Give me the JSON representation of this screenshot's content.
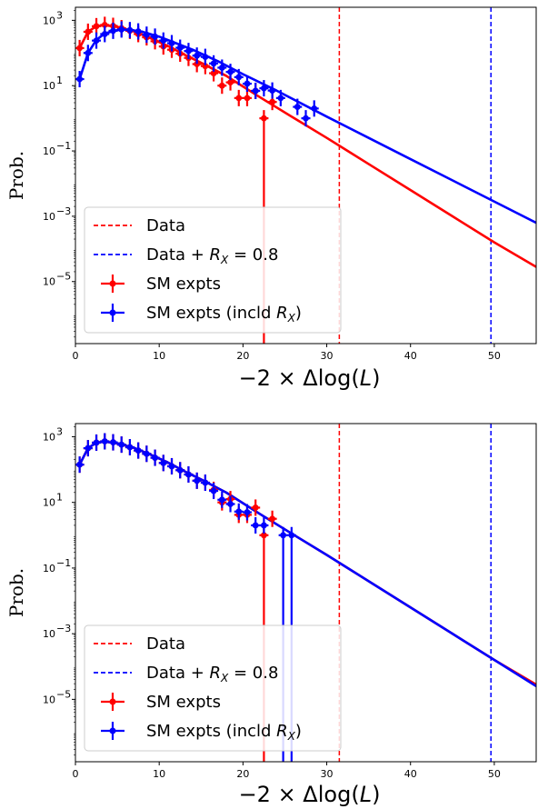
{
  "chart_data": [
    {
      "type": "line",
      "title": "",
      "xlabel": "−2 × Δlog(L)",
      "ylabel": "Prob.",
      "xlim": [
        0,
        55
      ],
      "ylim_log10": [
        -6.9,
        3.4
      ],
      "y_scale": "log",
      "xticks": [
        0,
        10,
        20,
        30,
        40,
        50
      ],
      "yticks_log10": [
        3,
        1,
        -1,
        -3,
        -5
      ],
      "legend_position": "lower-left",
      "vlines": [
        {
          "name": "Data",
          "x": 31.5,
          "color": "#ff0000"
        },
        {
          "name": "Data + R_X = 0.8",
          "x": 49.6,
          "color": "#0000ff"
        }
      ],
      "curves": [
        {
          "color": "#ff0000",
          "x": [
            0.5,
            1.5,
            2.5,
            3.5,
            5,
            7,
            9,
            11,
            13,
            15,
            18,
            22,
            26,
            30,
            35,
            40,
            45,
            50,
            55
          ],
          "y_log10": [
            2.15,
            2.65,
            2.82,
            2.85,
            2.8,
            2.66,
            2.45,
            2.22,
            1.95,
            1.7,
            1.3,
            0.65,
            0.02,
            -0.6,
            -1.4,
            -2.2,
            -3.0,
            -3.8,
            -4.55
          ]
        },
        {
          "color": "#0000ff",
          "x": [
            0.5,
            1.5,
            2.5,
            3.5,
            5,
            6,
            8,
            10,
            12,
            14,
            17,
            20,
            24,
            30,
            35,
            40,
            45,
            50,
            55
          ],
          "y_log10": [
            1.2,
            2.0,
            2.4,
            2.6,
            2.7,
            2.72,
            2.65,
            2.5,
            2.3,
            2.1,
            1.75,
            1.35,
            0.85,
            0.05,
            -0.6,
            -1.25,
            -1.9,
            -2.55,
            -3.2
          ]
        }
      ],
      "series": [
        {
          "name": "SM expts",
          "color": "#ff0000",
          "x": [
            0.5,
            1.5,
            2.5,
            3.5,
            4.5,
            5.5,
            6.5,
            7.5,
            8.5,
            9.5,
            10.5,
            11.5,
            12.5,
            13.5,
            14.5,
            15.5,
            16.5,
            17.5,
            18.5,
            19.5,
            20.5,
            21.5,
            22.5,
            23.5
          ],
          "y_log10": [
            2.15,
            2.65,
            2.82,
            2.86,
            2.83,
            2.76,
            2.68,
            2.58,
            2.48,
            2.36,
            2.2,
            2.1,
            1.98,
            1.85,
            1.66,
            1.6,
            1.38,
            1.0,
            1.1,
            0.62,
            0.62,
            0.84,
            0.0,
            0.5
          ],
          "bottom_to_axis": [
            22.5
          ]
        },
        {
          "name": "SM expts (incld R_X)",
          "color": "#0000ff",
          "x": [
            0.5,
            1.5,
            2.5,
            3.5,
            4.5,
            5.5,
            6.5,
            7.5,
            8.5,
            9.5,
            10.5,
            11.5,
            12.5,
            13.5,
            14.5,
            15.5,
            16.5,
            17.5,
            18.5,
            19.5,
            20.5,
            21.5,
            22.5,
            23.5,
            24.5,
            26.5,
            27.5,
            28.5
          ],
          "y_log10": [
            1.2,
            2.0,
            2.38,
            2.58,
            2.68,
            2.72,
            2.7,
            2.66,
            2.56,
            2.5,
            2.38,
            2.3,
            2.16,
            2.06,
            1.92,
            1.88,
            1.68,
            1.55,
            1.42,
            1.26,
            1.06,
            0.84,
            0.92,
            0.85,
            0.62,
            0.35,
            0.0,
            0.3
          ],
          "bottom_to_axis": [
            28.0
          ]
        }
      ]
    },
    {
      "type": "line",
      "title": "",
      "xlabel": "−2 × Δlog(L)",
      "ylabel": "Prob.",
      "xlim": [
        0,
        55
      ],
      "ylim_log10": [
        -6.9,
        3.4
      ],
      "y_scale": "log",
      "xticks": [
        0,
        10,
        20,
        30,
        40,
        50
      ],
      "yticks_log10": [
        3,
        1,
        -1,
        -3,
        -5
      ],
      "legend_position": "lower-left",
      "vlines": [
        {
          "name": "Data",
          "x": 31.5,
          "color": "#ff0000"
        },
        {
          "name": "Data + R_X = 0.8",
          "x": 49.6,
          "color": "#0000ff"
        }
      ],
      "curves": [
        {
          "color": "#ff0000",
          "x": [
            0.5,
            1.5,
            2.5,
            3.5,
            5,
            7,
            9,
            11,
            13,
            15,
            18,
            22,
            26,
            30,
            35,
            40,
            45,
            50,
            55
          ],
          "y_log10": [
            2.15,
            2.65,
            2.82,
            2.85,
            2.8,
            2.66,
            2.45,
            2.22,
            1.95,
            1.7,
            1.3,
            0.65,
            0.02,
            -0.6,
            -1.4,
            -2.2,
            -3.0,
            -3.8,
            -4.55
          ]
        },
        {
          "color": "#0000ff",
          "x": [
            0.5,
            1.5,
            2.5,
            3.5,
            5,
            7,
            9,
            11,
            13,
            15,
            18,
            22,
            26,
            30,
            35,
            40,
            45,
            50,
            55
          ],
          "y_log10": [
            2.15,
            2.65,
            2.82,
            2.85,
            2.8,
            2.66,
            2.45,
            2.22,
            1.95,
            1.7,
            1.3,
            0.65,
            0.02,
            -0.6,
            -1.4,
            -2.2,
            -3.0,
            -3.8,
            -4.6
          ]
        }
      ],
      "series": [
        {
          "name": "SM expts",
          "color": "#ff0000",
          "x": [
            0.5,
            1.5,
            2.5,
            3.5,
            4.5,
            5.5,
            6.5,
            7.5,
            8.5,
            9.5,
            10.5,
            11.5,
            12.5,
            13.5,
            14.5,
            15.5,
            16.5,
            17.5,
            18.5,
            19.5,
            20.5,
            21.5,
            22.5,
            23.5
          ],
          "y_log10": [
            2.15,
            2.65,
            2.82,
            2.86,
            2.83,
            2.76,
            2.68,
            2.58,
            2.48,
            2.36,
            2.2,
            2.1,
            1.98,
            1.85,
            1.66,
            1.6,
            1.38,
            1.0,
            1.1,
            0.62,
            0.62,
            0.84,
            0.0,
            0.5
          ],
          "bottom_to_axis": [
            22.5
          ]
        },
        {
          "name": "SM expts (incld R_X)",
          "color": "#0000ff",
          "x": [
            0.5,
            1.5,
            2.5,
            3.5,
            4.5,
            5.5,
            6.5,
            7.5,
            8.5,
            9.5,
            10.5,
            11.5,
            12.5,
            13.5,
            14.5,
            15.5,
            16.5,
            17.5,
            18.5,
            19.5,
            20.5,
            21.5,
            22.5,
            24.8,
            25.8
          ],
          "y_log10": [
            2.15,
            2.65,
            2.82,
            2.86,
            2.83,
            2.76,
            2.68,
            2.58,
            2.48,
            2.36,
            2.2,
            2.1,
            1.98,
            1.85,
            1.66,
            1.6,
            1.35,
            1.08,
            0.95,
            0.72,
            0.7,
            0.3,
            0.3,
            0.0,
            0.0
          ],
          "bottom_to_axis": [
            24.8,
            25.8
          ]
        }
      ]
    }
  ],
  "legend": [
    {
      "kind": "dash",
      "color": "#0000ff",
      "label": "Data"
    },
    {
      "kind": "dash",
      "color": "#0000ff",
      "label": "Data + "
    },
    {
      "kind": "errbar",
      "color": "#ff0000",
      "label": "SM expts"
    },
    {
      "kind": "errbar",
      "color": "#0000ff",
      "label": "SM expts (incld "
    }
  ],
  "legend_math": {
    "rx_symbol": "R",
    "rx_sub": "X",
    "rx_value": " = 0.8"
  }
}
